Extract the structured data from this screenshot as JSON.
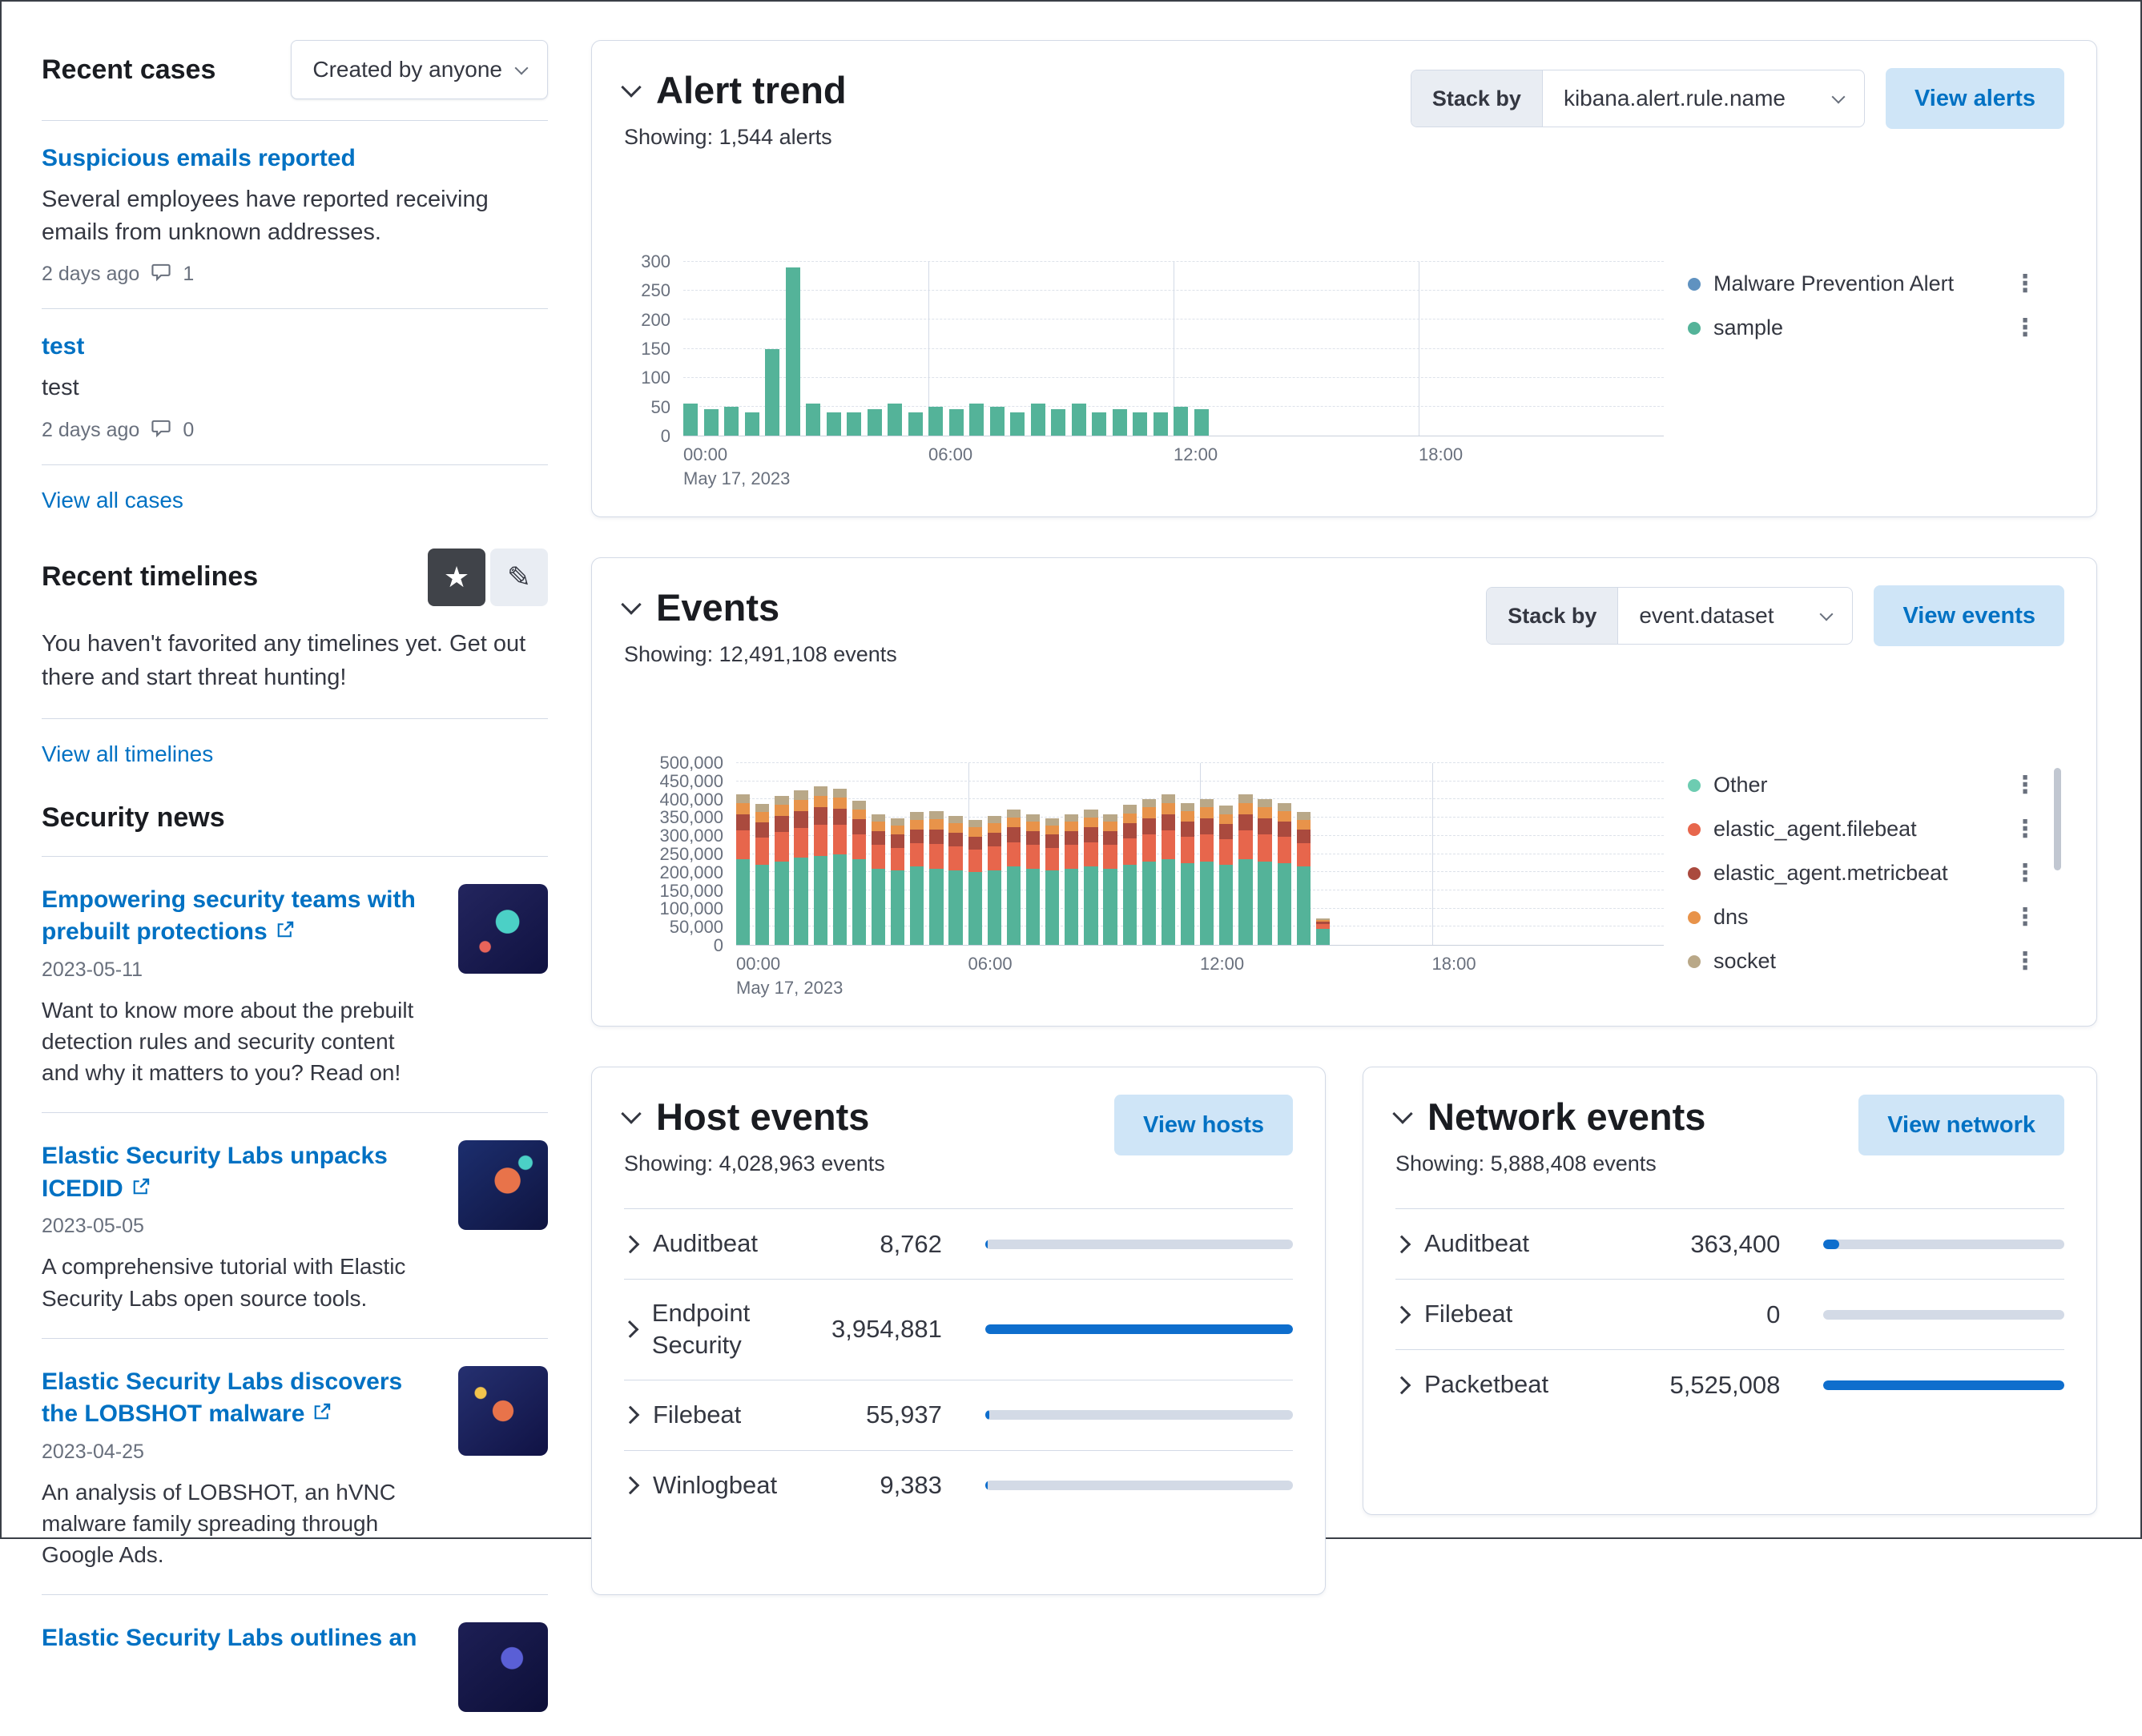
{
  "colors": {
    "link": "#0071c3",
    "button_bg": "#cfe5f7",
    "bar_fill": "#0e6ecd",
    "bar_track": "#d3dae6",
    "alert_green": "#54b399",
    "border": "#d3dae6"
  },
  "sidebar": {
    "recent_cases": {
      "title": "Recent cases",
      "filter_button": "Created by anyone",
      "cases": [
        {
          "title": "Suspicious emails reported",
          "description": "Several employees have reported receiving emails from unknown addresses.",
          "age": "2 days ago",
          "comment_count": "1"
        },
        {
          "title": "test",
          "description": "test",
          "age": "2 days ago",
          "comment_count": "0"
        }
      ],
      "view_all_label": "View all cases"
    },
    "recent_timelines": {
      "title": "Recent timelines",
      "empty_message": "You haven't favorited any timelines yet. Get out there and start threat hunting!",
      "view_all_label": "View all timelines"
    },
    "security_news": {
      "title": "Security news",
      "items": [
        {
          "title": "Empowering security teams with prebuilt protections",
          "date": "2023-05-11",
          "summary": "Want to know more about the prebuilt detection rules and security content and why it matters to you? Read on!"
        },
        {
          "title": "Elastic Security Labs unpacks ICEDID",
          "date": "2023-05-05",
          "summary": "A comprehensive tutorial with Elastic Security Labs open source tools."
        },
        {
          "title": "Elastic Security Labs discovers the LOBSHOT malware",
          "date": "2023-04-25",
          "summary": "An analysis of LOBSHOT, an hVNC malware family spreading through Google Ads."
        },
        {
          "title": "Elastic Security Labs outlines an",
          "date": "",
          "summary": ""
        }
      ]
    }
  },
  "alert_trend": {
    "title": "Alert trend",
    "showing": "Showing: 1,544 alerts",
    "stack_by_label": "Stack by",
    "stack_by_value": "kibana.alert.rule.name",
    "view_button": "View alerts",
    "legend": [
      {
        "label": "Malware Prevention Alert",
        "color": "#6092c0"
      },
      {
        "label": "sample",
        "color": "#54b399"
      }
    ]
  },
  "events": {
    "title": "Events",
    "showing": "Showing: 12,491,108 events",
    "stack_by_label": "Stack by",
    "stack_by_value": "event.dataset",
    "view_button": "View events",
    "legend": [
      {
        "label": "Other",
        "color": "#6dccb1"
      },
      {
        "label": "elastic_agent.filebeat",
        "color": "#e7664c"
      },
      {
        "label": "elastic_agent.metricbeat",
        "color": "#aa4a3e"
      },
      {
        "label": "dns",
        "color": "#e8934a"
      },
      {
        "label": "socket",
        "color": "#b9a888"
      }
    ]
  },
  "host_events": {
    "title": "Host events",
    "showing": "Showing: 4,028,963 events",
    "view_button": "View hosts",
    "rows": [
      {
        "name": "Auditbeat",
        "value": "8,762",
        "count": 8762
      },
      {
        "name": "Endpoint Security",
        "value": "3,954,881",
        "count": 3954881
      },
      {
        "name": "Filebeat",
        "value": "55,937",
        "count": 55937
      },
      {
        "name": "Winlogbeat",
        "value": "9,383",
        "count": 9383
      }
    ]
  },
  "network_events": {
    "title": "Network events",
    "showing": "Showing: 5,888,408 events",
    "view_button": "View network",
    "rows": [
      {
        "name": "Auditbeat",
        "value": "363,400",
        "count": 363400
      },
      {
        "name": "Filebeat",
        "value": "0",
        "count": 0
      },
      {
        "name": "Packetbeat",
        "value": "5,525,008",
        "count": 5525008
      }
    ]
  },
  "chart_data": [
    {
      "type": "bar",
      "title": "Alert trend",
      "xlabel": "",
      "ylabel": "",
      "ylim": [
        0,
        300
      ],
      "y_ticks": [
        0,
        50,
        100,
        150,
        200,
        250,
        300
      ],
      "grid": true,
      "legend_position": "right",
      "x_axis": {
        "slots": 48,
        "ticks": [
          {
            "index": 0,
            "label": "00:00",
            "sublabel": "May 17, 2023"
          },
          {
            "index": 12,
            "label": "06:00"
          },
          {
            "index": 24,
            "label": "12:00"
          },
          {
            "index": 36,
            "label": "18:00"
          }
        ]
      },
      "series": [
        {
          "name": "sample",
          "color": "#54b399",
          "values": [
            55,
            45,
            50,
            40,
            150,
            290,
            55,
            40,
            40,
            45,
            55,
            40,
            50,
            45,
            55,
            50,
            40,
            55,
            45,
            55,
            40,
            45,
            40,
            40,
            50,
            45
          ]
        }
      ]
    },
    {
      "type": "stacked-bar",
      "title": "Events",
      "xlabel": "",
      "ylabel": "",
      "ylim": [
        0,
        500000
      ],
      "y_ticks": [
        0,
        50000,
        100000,
        150000,
        200000,
        250000,
        300000,
        350000,
        400000,
        450000,
        500000
      ],
      "grid": true,
      "legend_position": "right",
      "x_axis": {
        "slots": 48,
        "ticks": [
          {
            "index": 0,
            "label": "00:00",
            "sublabel": "May 17, 2023"
          },
          {
            "index": 12,
            "label": "06:00"
          },
          {
            "index": 24,
            "label": "12:00"
          },
          {
            "index": 36,
            "label": "18:00"
          }
        ]
      },
      "series": [
        {
          "name": "Other",
          "color": "#54b399",
          "values": [
            235000,
            220000,
            230000,
            240000,
            245000,
            250000,
            235000,
            210000,
            205000,
            215000,
            210000,
            205000,
            200000,
            205000,
            215000,
            210000,
            205000,
            210000,
            215000,
            210000,
            220000,
            230000,
            235000,
            225000,
            230000,
            220000,
            235000,
            230000,
            225000,
            215000,
            45000
          ]
        },
        {
          "name": "elastic_agent.filebeat",
          "color": "#e7664c",
          "values": [
            80000,
            75000,
            80000,
            82000,
            85000,
            80000,
            70000,
            65000,
            62000,
            65000,
            68000,
            65000,
            62000,
            65000,
            68000,
            65000,
            62000,
            65000,
            68000,
            65000,
            72000,
            75000,
            80000,
            72000,
            75000,
            70000,
            80000,
            75000,
            72000,
            65000,
            12000
          ]
        },
        {
          "name": "elastic_agent.metricbeat",
          "color": "#aa4a3e",
          "values": [
            45000,
            42000,
            45000,
            46000,
            48000,
            45000,
            40000,
            38000,
            36000,
            38000,
            40000,
            38000,
            36000,
            38000,
            40000,
            38000,
            36000,
            38000,
            40000,
            38000,
            42000,
            44000,
            45000,
            42000,
            44000,
            42000,
            45000,
            44000,
            42000,
            38000,
            7000
          ]
        },
        {
          "name": "dns",
          "color": "#e8934a",
          "values": [
            30000,
            28000,
            30000,
            31000,
            32000,
            30000,
            28000,
            26000,
            25000,
            26000,
            27000,
            26000,
            25000,
            26000,
            27000,
            26000,
            25000,
            26000,
            27000,
            26000,
            28000,
            29000,
            30000,
            28000,
            29000,
            28000,
            30000,
            29000,
            28000,
            26000,
            5000
          ]
        },
        {
          "name": "socket",
          "color": "#b9a888",
          "values": [
            25000,
            23000,
            25000,
            26000,
            27000,
            25000,
            23000,
            21000,
            20000,
            21000,
            22000,
            21000,
            20000,
            21000,
            22000,
            21000,
            20000,
            21000,
            22000,
            21000,
            23000,
            24000,
            25000,
            23000,
            24000,
            23000,
            25000,
            24000,
            23000,
            21000,
            4000
          ]
        }
      ]
    }
  ]
}
